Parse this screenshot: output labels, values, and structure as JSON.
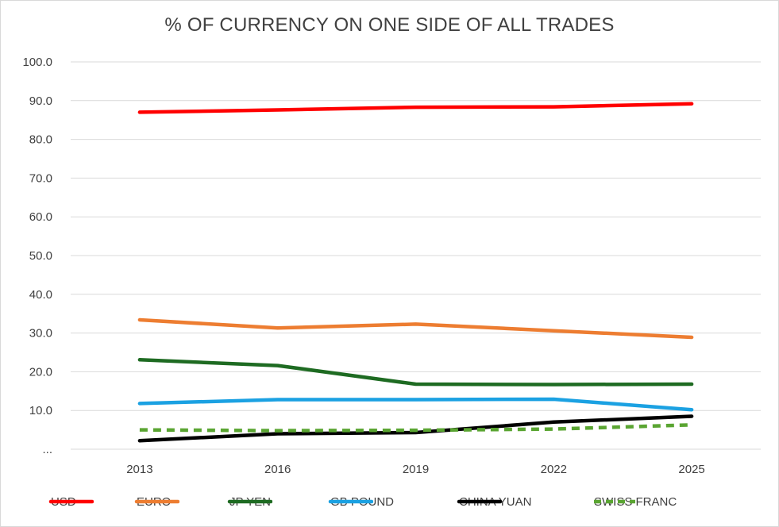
{
  "chart_data": {
    "type": "line",
    "title": "% OF CURRENCY ON ONE SIDE OF ALL TRADES",
    "x": [
      "2013",
      "2016",
      "2019",
      "2022",
      "2025"
    ],
    "ylim": [
      0,
      100
    ],
    "yticks": [
      "...",
      "10.0",
      "20.0",
      "30.0",
      "40.0",
      "50.0",
      "60.0",
      "70.0",
      "80.0",
      "90.0",
      "100.0"
    ],
    "grid": true,
    "legend_position": "bottom",
    "series": [
      {
        "name": "USD",
        "color": "#ff0000",
        "dashed": false,
        "values": [
          87.0,
          87.6,
          88.3,
          88.4,
          89.2
        ]
      },
      {
        "name": "EURO",
        "color": "#ed7d31",
        "dashed": false,
        "values": [
          33.4,
          31.3,
          32.3,
          30.6,
          28.9
        ]
      },
      {
        "name": "JP YEN",
        "color": "#1e6b22",
        "dashed": false,
        "values": [
          23.1,
          21.6,
          16.8,
          16.7,
          16.8
        ]
      },
      {
        "name": "GB POUND",
        "color": "#1ba1e2",
        "dashed": false,
        "values": [
          11.8,
          12.8,
          12.8,
          12.9,
          10.2
        ]
      },
      {
        "name": "CHINA YUAN",
        "color": "#000000",
        "dashed": false,
        "values": [
          2.2,
          4.0,
          4.3,
          7.0,
          8.5
        ]
      },
      {
        "name": "SWISS FRANC",
        "color": "#5aa532",
        "dashed": true,
        "values": [
          5.0,
          4.8,
          4.9,
          5.2,
          6.3
        ]
      }
    ]
  }
}
